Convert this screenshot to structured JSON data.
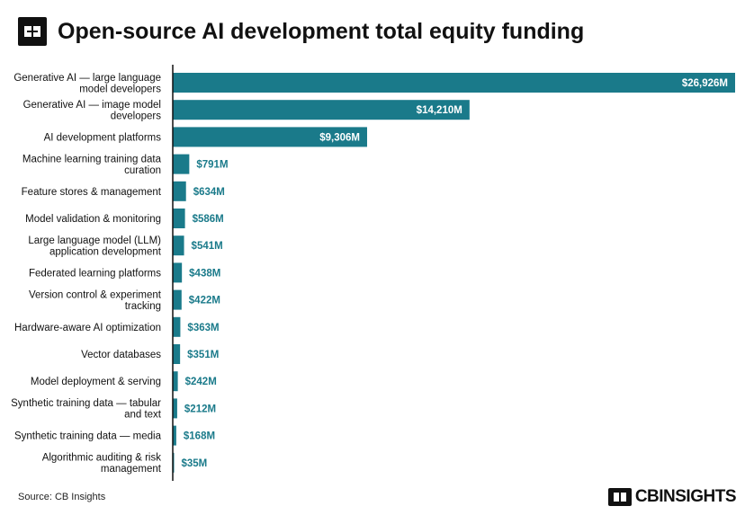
{
  "title": "Open-source AI development total equity funding",
  "source": "Source: CB Insights",
  "brand": "CBINSIGHTS",
  "colors": {
    "bar": "#1a7a8a",
    "label_dark": "#1a7a8a",
    "label_light": "#ffffff",
    "axis": "#111111"
  },
  "chart_data": {
    "type": "bar",
    "orientation": "horizontal",
    "title": "Open-source AI development total equity funding",
    "unit": "$M",
    "categories": [
      "Generative AI — large language model developers",
      "Generative AI — image model developers",
      "AI development platforms",
      "Machine learning training data curation",
      "Feature stores & management",
      "Model validation & monitoring",
      "Large language model (LLM) application development",
      "Federated learning platforms",
      "Version control & experiment tracking",
      "Hardware-aware AI optimization",
      "Vector databases",
      "Model deployment & serving",
      "Synthetic training data — tabular and text",
      "Synthetic training data — media",
      "Algorithmic auditing & risk management"
    ],
    "category_lines": [
      [
        "Generative AI — large language",
        "model developers"
      ],
      [
        "Generative AI — image model",
        "developers"
      ],
      [
        "AI development platforms"
      ],
      [
        "Machine learning training data",
        "curation"
      ],
      [
        "Feature stores & management"
      ],
      [
        "Model validation & monitoring"
      ],
      [
        "Large language model (LLM)",
        "application development"
      ],
      [
        "Federated learning platforms"
      ],
      [
        "Version control & experiment",
        "tracking"
      ],
      [
        "Hardware-aware AI optimization"
      ],
      [
        "Vector databases"
      ],
      [
        "Model deployment & serving"
      ],
      [
        "Synthetic training data — tabular",
        "and text"
      ],
      [
        "Synthetic training data — media"
      ],
      [
        "Algorithmic auditing & risk",
        "management"
      ]
    ],
    "values": [
      26926,
      14210,
      9306,
      791,
      634,
      586,
      541,
      438,
      422,
      363,
      351,
      242,
      212,
      168,
      35
    ],
    "value_labels": [
      "$26,926M",
      "$14,210M",
      "$9,306M",
      "$791M",
      "$634M",
      "$586M",
      "$541M",
      "$438M",
      "$422M",
      "$363M",
      "$351M",
      "$242M",
      "$212M",
      "$168M",
      "$35M"
    ],
    "xlim": [
      0,
      26926
    ],
    "grid": false,
    "legend": "none"
  }
}
